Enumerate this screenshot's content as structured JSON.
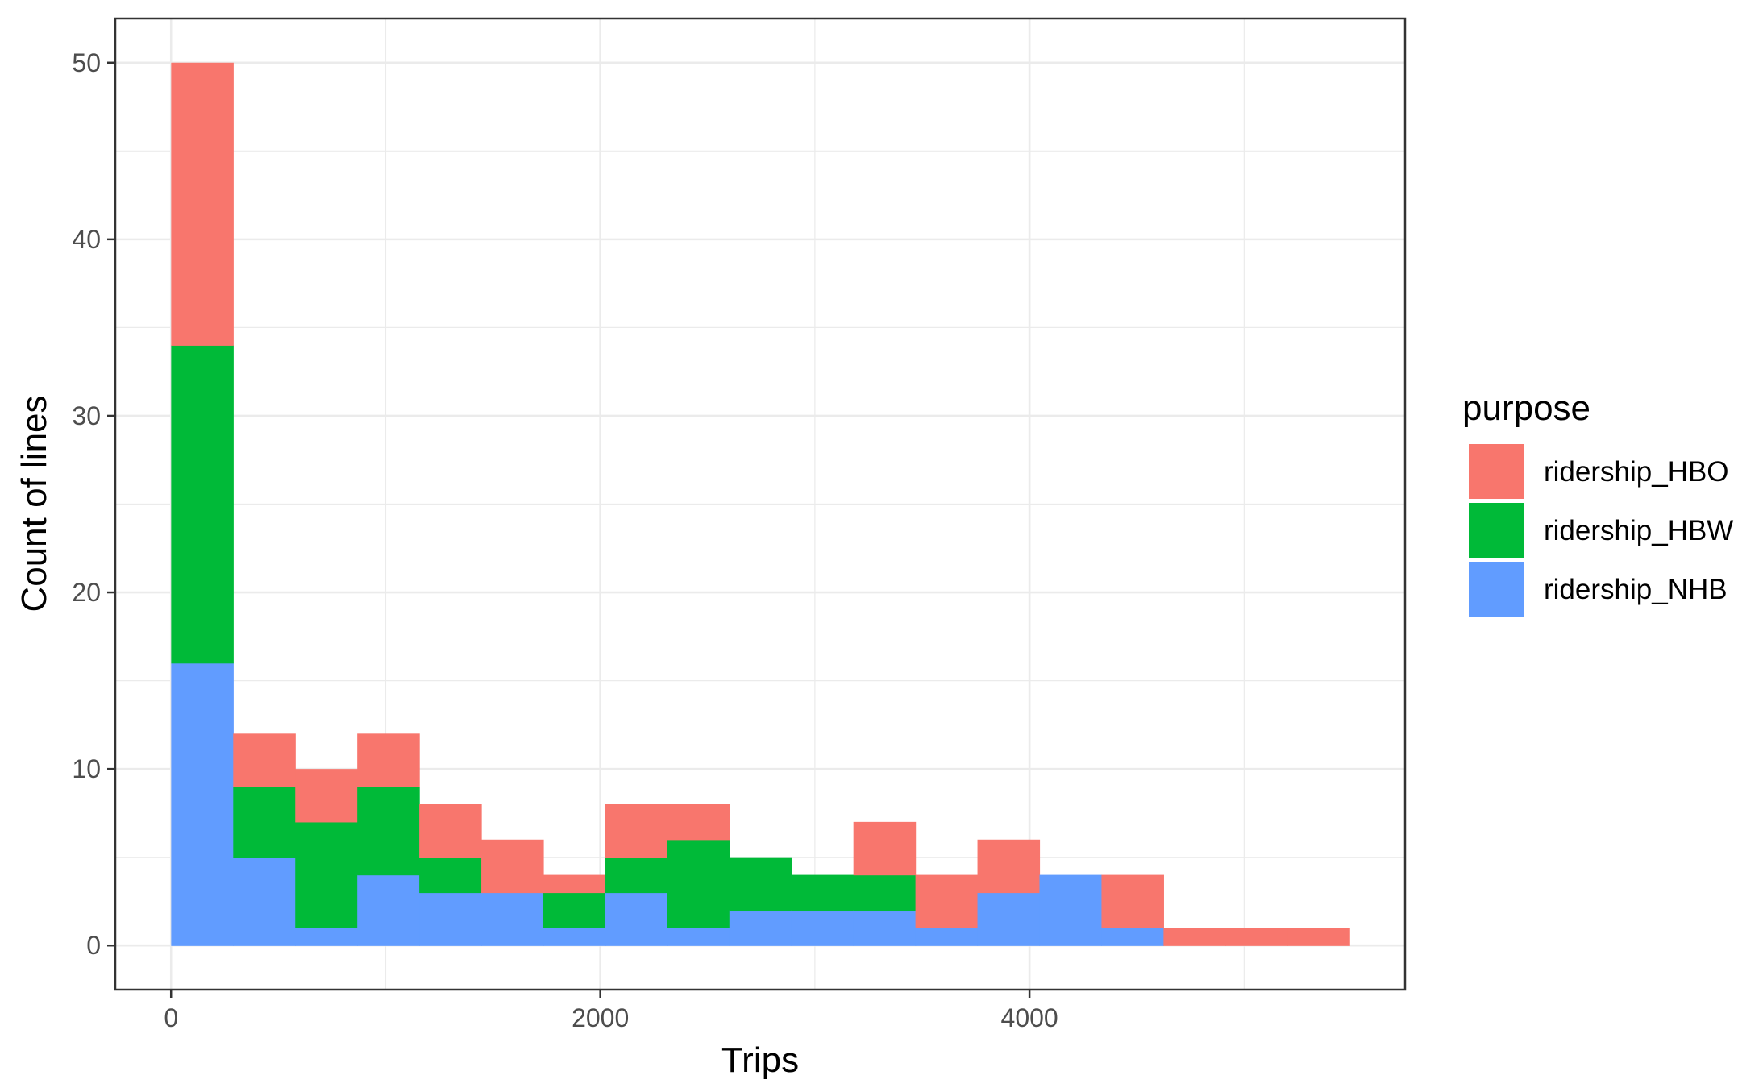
{
  "chart_data": {
    "type": "bar",
    "subtype": "stacked-histogram",
    "xlabel": "Trips",
    "ylabel": "Count of lines",
    "xlim": [
      -260,
      5750
    ],
    "ylim": [
      -2.5,
      52.5
    ],
    "x_ticks": [
      0,
      2000,
      4000
    ],
    "y_ticks": [
      0,
      10,
      20,
      30,
      40,
      50
    ],
    "grid": true,
    "bin_width": 289,
    "bin_centers": [
      145,
      434,
      723,
      1012,
      1301,
      1590,
      1879,
      2168,
      2457,
      2746,
      3035,
      3324,
      3613,
      3902,
      4191,
      4480,
      4769,
      5058,
      5347
    ],
    "legend": {
      "title": "purpose",
      "position": "right"
    },
    "series": [
      {
        "name": "ridership_NHB",
        "color": "#619CFF",
        "values": [
          16,
          5,
          1,
          4,
          3,
          3,
          1,
          3,
          1,
          2,
          2,
          2,
          1,
          3,
          4,
          1,
          0,
          0,
          0
        ]
      },
      {
        "name": "ridership_HBW",
        "color": "#00BA38",
        "values": [
          18,
          4,
          6,
          5,
          2,
          0,
          2,
          2,
          5,
          3,
          2,
          2,
          0,
          0,
          0,
          0,
          0,
          0,
          0
        ]
      },
      {
        "name": "ridership_HBO",
        "color": "#F8766D",
        "values": [
          16,
          3,
          3,
          3,
          3,
          3,
          1,
          3,
          2,
          0,
          0,
          3,
          3,
          3,
          0,
          3,
          1,
          1,
          1
        ]
      }
    ],
    "legend_order": [
      "ridership_HBO",
      "ridership_HBW",
      "ridership_NHB"
    ]
  }
}
